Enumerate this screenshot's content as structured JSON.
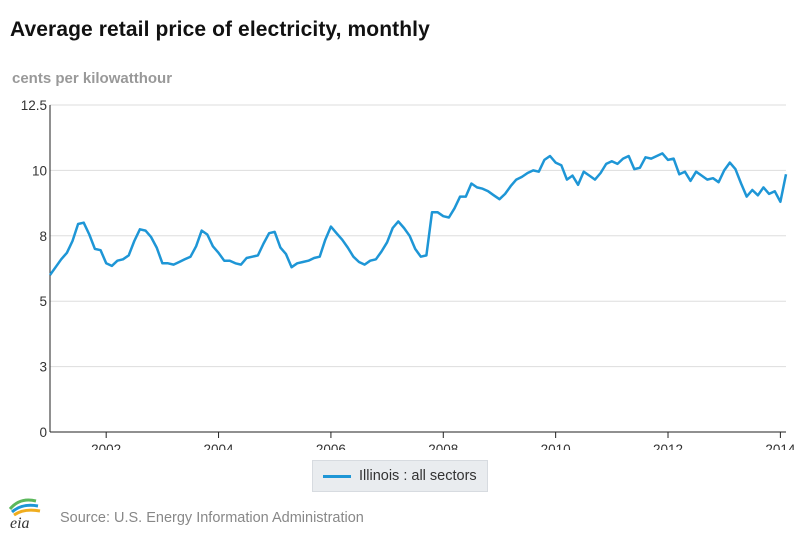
{
  "colors": {
    "series": "#1e96d6",
    "grid": "#dddddd",
    "axis": "#222222"
  },
  "header": {
    "title": "Average retail price of electricity, monthly",
    "units": "cents per kilowatthour"
  },
  "legend": {
    "label": "Illinois : all sectors"
  },
  "footer": {
    "source": "Source: U.S. Energy Information Administration",
    "logo_text": "eia"
  },
  "chart_data": {
    "type": "line",
    "title": "Average retail price of electricity, monthly",
    "ylabel": "cents per kilowatthour",
    "xlabel": "",
    "ylim": [
      0,
      12.5
    ],
    "xlim": [
      2001.0,
      2014.1
    ],
    "yticks": [
      0,
      2.5,
      5,
      7.5,
      10,
      12.5
    ],
    "ytick_labels": [
      "0",
      "3",
      "5",
      "8",
      "10",
      "12.5"
    ],
    "xticks": [
      2002,
      2004,
      2006,
      2008,
      2010,
      2012,
      2014
    ],
    "xtick_labels": [
      "2002",
      "2004",
      "2006",
      "2008",
      "2010",
      "2012",
      "2014"
    ],
    "grid": true,
    "legend_position": "bottom-center",
    "series": [
      {
        "name": "Illinois : all sectors",
        "x": [
          2001.0,
          2001.1,
          2001.2,
          2001.3,
          2001.4,
          2001.5,
          2001.6,
          2001.7,
          2001.8,
          2001.9,
          2002.0,
          2002.1,
          2002.2,
          2002.3,
          2002.4,
          2002.5,
          2002.6,
          2002.7,
          2002.8,
          2002.9,
          2003.0,
          2003.1,
          2003.2,
          2003.3,
          2003.4,
          2003.5,
          2003.6,
          2003.7,
          2003.8,
          2003.9,
          2004.0,
          2004.1,
          2004.2,
          2004.3,
          2004.4,
          2004.5,
          2004.6,
          2004.7,
          2004.8,
          2004.9,
          2005.0,
          2005.1,
          2005.2,
          2005.3,
          2005.4,
          2005.5,
          2005.6,
          2005.7,
          2005.8,
          2005.9,
          2006.0,
          2006.1,
          2006.2,
          2006.3,
          2006.4,
          2006.5,
          2006.6,
          2006.7,
          2006.8,
          2006.9,
          2007.0,
          2007.1,
          2007.2,
          2007.3,
          2007.4,
          2007.5,
          2007.6,
          2007.7,
          2007.8,
          2007.9,
          2008.0,
          2008.1,
          2008.2,
          2008.3,
          2008.4,
          2008.5,
          2008.6,
          2008.7,
          2008.8,
          2008.9,
          2009.0,
          2009.1,
          2009.2,
          2009.3,
          2009.4,
          2009.5,
          2009.6,
          2009.7,
          2009.8,
          2009.9,
          2010.0,
          2010.1,
          2010.2,
          2010.3,
          2010.4,
          2010.5,
          2010.6,
          2010.7,
          2010.8,
          2010.9,
          2011.0,
          2011.1,
          2011.2,
          2011.3,
          2011.4,
          2011.5,
          2011.6,
          2011.7,
          2011.8,
          2011.9,
          2012.0,
          2012.1,
          2012.2,
          2012.3,
          2012.4,
          2012.5,
          2012.6,
          2012.7,
          2012.8,
          2012.9,
          2013.0,
          2013.1,
          2013.2,
          2013.3,
          2013.4,
          2013.5,
          2013.6,
          2013.7,
          2013.8,
          2013.9,
          2014.0,
          2014.1
        ],
        "values": [
          6.0,
          6.3,
          6.6,
          6.85,
          7.3,
          7.95,
          8.0,
          7.55,
          7.0,
          6.95,
          6.45,
          6.35,
          6.55,
          6.6,
          6.75,
          7.3,
          7.75,
          7.7,
          7.45,
          7.05,
          6.45,
          6.45,
          6.4,
          6.5,
          6.6,
          6.7,
          7.1,
          7.7,
          7.55,
          7.1,
          6.85,
          6.55,
          6.55,
          6.45,
          6.4,
          6.65,
          6.7,
          6.75,
          7.2,
          7.6,
          7.65,
          7.05,
          6.8,
          6.3,
          6.45,
          6.5,
          6.55,
          6.65,
          6.7,
          7.35,
          7.85,
          7.6,
          7.35,
          7.05,
          6.7,
          6.5,
          6.4,
          6.55,
          6.6,
          6.9,
          7.25,
          7.8,
          8.05,
          7.8,
          7.5,
          7.0,
          6.7,
          6.75,
          8.4,
          8.4,
          8.25,
          8.2,
          8.55,
          9.0,
          9.0,
          9.5,
          9.35,
          9.3,
          9.2,
          9.05,
          8.9,
          9.1,
          9.4,
          9.65,
          9.75,
          9.9,
          10.0,
          9.95,
          10.4,
          10.55,
          10.3,
          10.2,
          9.65,
          9.8,
          9.45,
          9.95,
          9.8,
          9.65,
          9.9,
          10.25,
          10.35,
          10.25,
          10.45,
          10.55,
          10.05,
          10.1,
          10.5,
          10.45,
          10.55,
          10.65,
          10.4,
          10.45,
          9.85,
          9.95,
          9.6,
          9.95,
          9.8,
          9.65,
          9.7,
          9.55,
          10.0,
          10.3,
          10.05,
          9.5,
          9.0,
          9.25,
          9.05,
          9.35,
          9.1,
          9.2,
          8.8,
          9.85
        ]
      }
    ]
  }
}
